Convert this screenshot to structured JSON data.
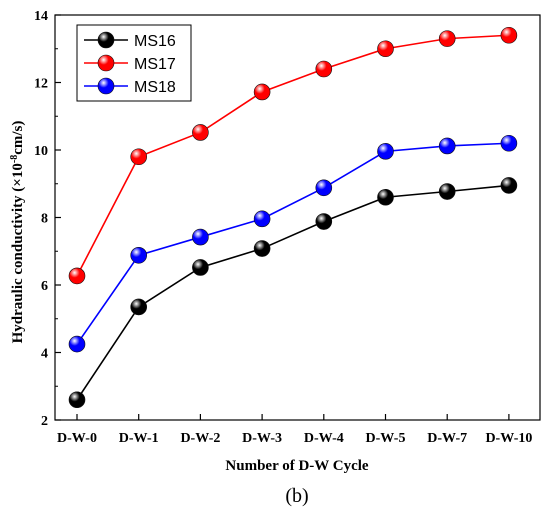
{
  "chart_data": {
    "type": "line",
    "categories": [
      "D-W-0",
      "D-W-1",
      "D-W-2",
      "D-W-3",
      "D-W-4",
      "D-W-5",
      "D-W-7",
      "D-W-10"
    ],
    "series": [
      {
        "name": "MS16",
        "color": "#000000",
        "values": [
          2.6,
          5.35,
          6.52,
          7.08,
          7.88,
          8.6,
          8.77,
          8.95
        ]
      },
      {
        "name": "MS17",
        "color": "#ff0000",
        "values": [
          6.27,
          9.8,
          10.52,
          11.72,
          12.4,
          13.0,
          13.3,
          13.4
        ]
      },
      {
        "name": "MS18",
        "color": "#0000ff",
        "values": [
          4.25,
          6.88,
          7.42,
          7.96,
          8.88,
          9.96,
          10.12,
          10.2
        ]
      }
    ],
    "xlabel": "Number of D-W Cycle",
    "ylabel": "Hydraulic conductivity (×10",
    "ylabel_sup": "-8",
    "ylabel_unit": "cm/s)",
    "ylim": [
      2,
      14
    ],
    "yticks": [
      2,
      4,
      6,
      8,
      10,
      12,
      14
    ],
    "grid": false,
    "legend_position": "top-left"
  },
  "panel_label": "(b)"
}
